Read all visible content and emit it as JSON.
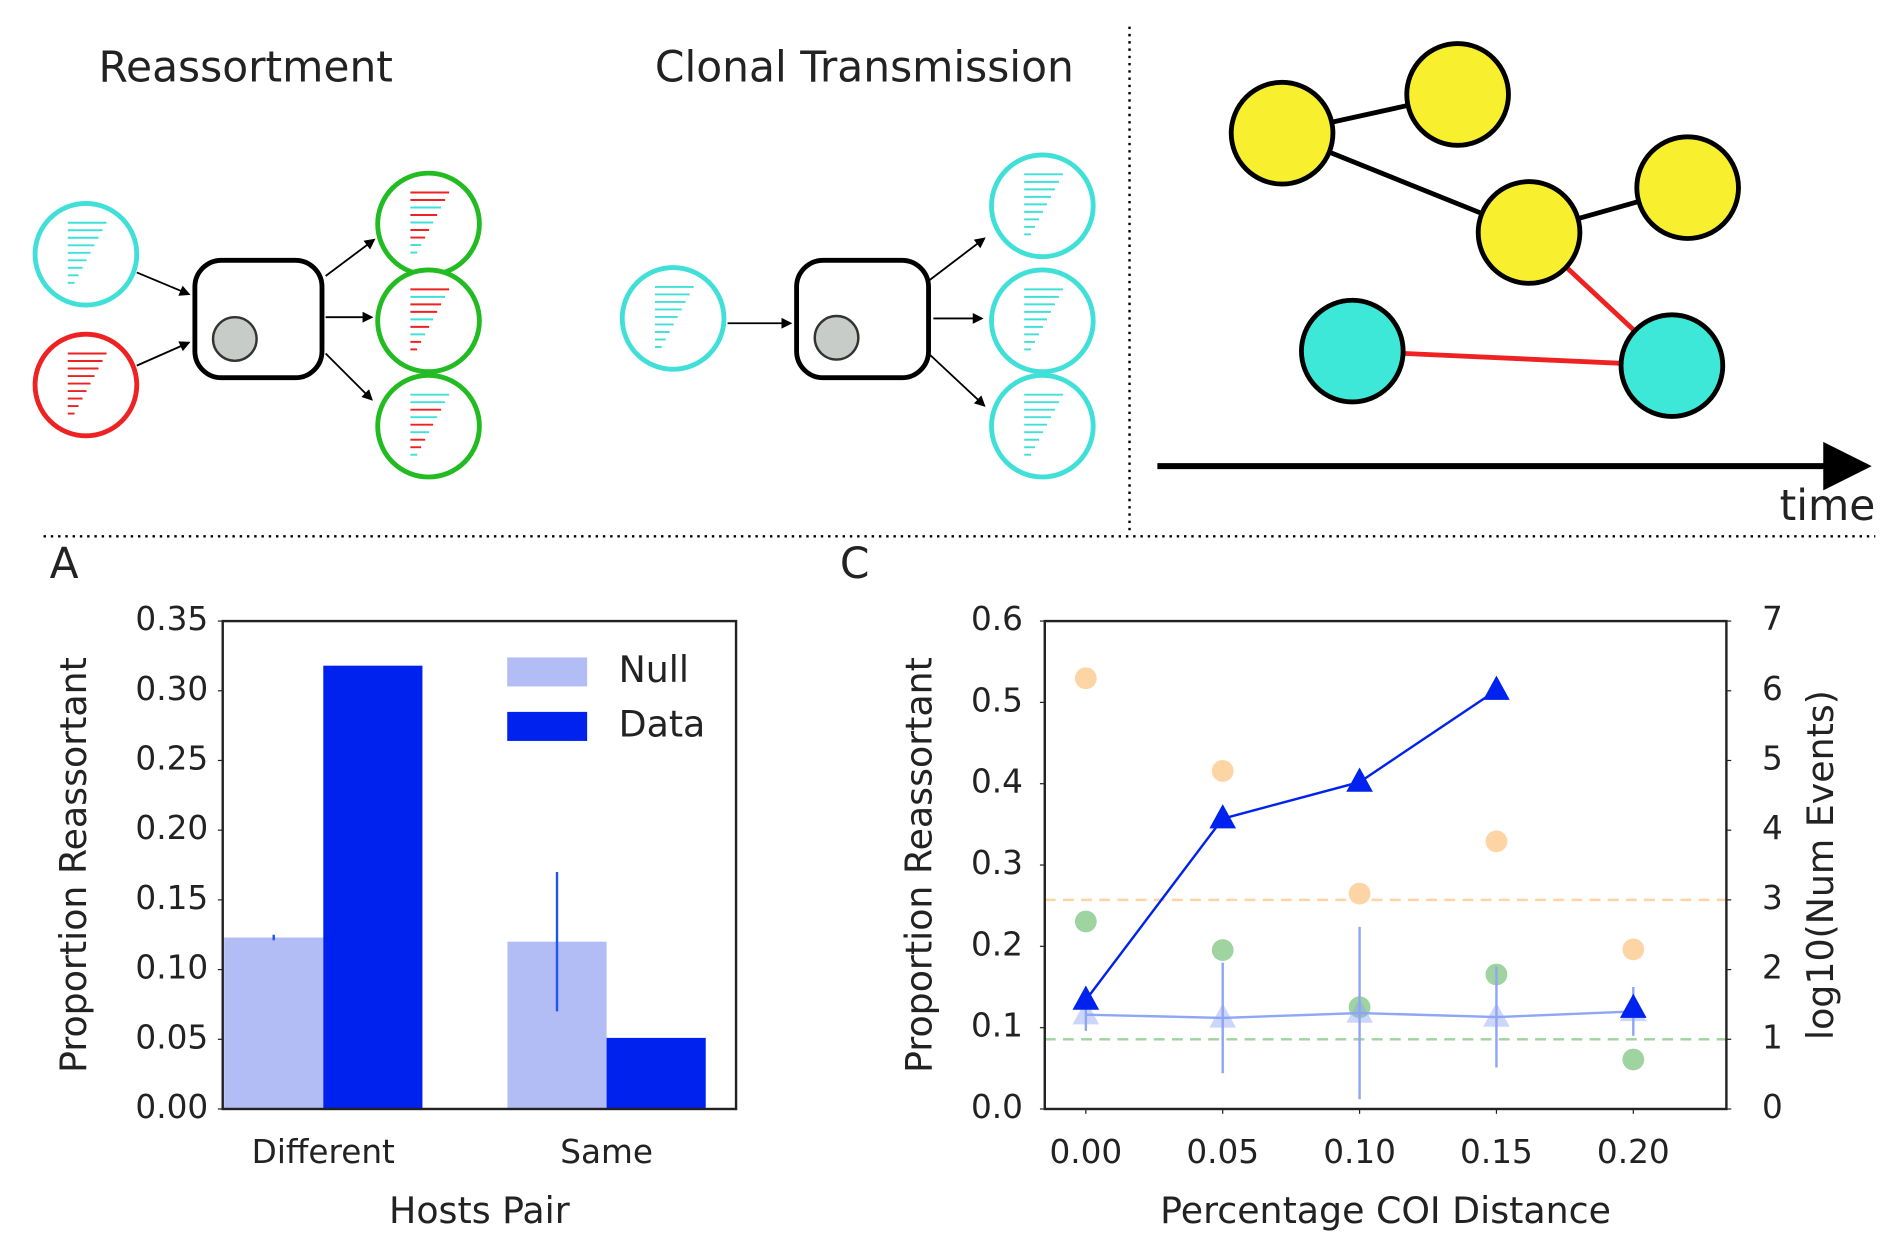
{
  "diagram": {
    "reassortment_title": "Reassortment",
    "clonal_title": "Clonal Transmission",
    "time_label": "time",
    "panel_a": "A",
    "panel_c": "C"
  },
  "chart_data": [
    {
      "type": "bar",
      "categories": [
        "Different",
        "Same"
      ],
      "series": [
        {
          "name": "Null",
          "color": "#b3bdf5",
          "values": [
            0.123,
            0.12
          ],
          "errors": [
            0.002,
            0.05
          ]
        },
        {
          "name": "Data",
          "color": "#0022ee",
          "values": [
            0.318,
            0.051
          ]
        }
      ],
      "ylim": [
        0,
        0.35
      ],
      "yticks": [
        {
          "value": 0,
          "label": "0.00"
        },
        0.05,
        {
          "value": 0.1,
          "label": "0.10"
        },
        0.15,
        {
          "value": 0.2,
          "label": "0.20"
        },
        0.25,
        {
          "value": 0.3,
          "label": "0.30"
        },
        0.35
      ],
      "xlabel": "Hosts Pair",
      "ylabel": "Proportion Reassortant",
      "legend": "upper right"
    },
    {
      "type": "line",
      "x": [
        0,
        0.05,
        0.1,
        0.15,
        0.2
      ],
      "series": [
        {
          "color": "#0022ee",
          "values": [
            0.134,
            0.357,
            0.402,
            0.515,
            null
          ],
          "marker": "triangle"
        },
        {
          "color": "#0022ee",
          "values": [
            null,
            null,
            null,
            null,
            0.124
          ],
          "marker": "triangle",
          "line": false
        },
        {
          "color": "#8fa5f5",
          "values": [
            0.116,
            0.112,
            0.118,
            0.113,
            0.12
          ],
          "errors": [
            0.02,
            0.068,
            0.106,
            0.062,
            0.03
          ],
          "marker": "triangle",
          "opacity": 0.45
        },
        {
          "color": "#fdd5a5",
          "values": [
            6.18,
            4.85,
            3.09,
            3.84,
            2.29
          ],
          "marker": "circle",
          "line": false,
          "axis": "y2"
        },
        {
          "color": "#9fd39f",
          "values": [
            2.69,
            2.28,
            1.46,
            1.93,
            0.71
          ],
          "marker": "circle",
          "line": false,
          "axis": "y2"
        }
      ],
      "hlines": [
        {
          "value": 3,
          "color": "#fdd5a5",
          "axis": "y2"
        },
        {
          "value": 1,
          "color": "#9fd39f",
          "axis": "y2"
        }
      ],
      "xlim": [
        -0.015,
        0.234
      ],
      "xticks": [
        {
          "value": 0,
          "label": "0.00"
        },
        0.05,
        {
          "value": 0.1,
          "label": "0.10"
        },
        0.15,
        {
          "value": 0.2,
          "label": "0.20"
        }
      ],
      "ylim": [
        0,
        0.6
      ],
      "yticks": [
        {
          "value": 0,
          "label": "0.0"
        },
        0.1,
        0.2,
        0.3,
        0.4,
        0.5,
        0.6
      ],
      "y2lim": [
        0,
        7
      ],
      "y2ticks": [
        0,
        1,
        2,
        3,
        4,
        5,
        6,
        7
      ],
      "xlabel": "Percentage COI Distance",
      "ylabel": "Proportion Reassortant",
      "y2label": "log10(Num Events)"
    }
  ]
}
